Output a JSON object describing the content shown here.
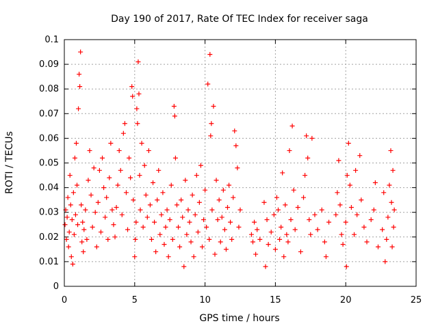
{
  "chart_data": {
    "type": "scatter",
    "title": "Day 190 of 2017, Rate Of TEC Index for receiver saga",
    "xlabel": "GPS time / hours",
    "ylabel": "ROTI / TECUs",
    "xlim": [
      0,
      25
    ],
    "ylim": [
      0,
      0.1
    ],
    "xticks": [
      "0",
      "5",
      "10",
      "15",
      "20",
      "25"
    ],
    "xtick_values": [
      0,
      5,
      10,
      15,
      20,
      25
    ],
    "yticks": [
      "0",
      "0.01",
      "0.02",
      "0.03",
      "0.04",
      "0.05",
      "0.06",
      "0.07",
      "0.08",
      "0.09",
      "0.1"
    ],
    "ytick_values": [
      0,
      0.01,
      0.02,
      0.03,
      0.04,
      0.05,
      0.06,
      0.07,
      0.08,
      0.09,
      0.1
    ],
    "grid": true,
    "marker": "+",
    "color": "#ff0000",
    "series": [
      {
        "points": [
          [
            0.05,
            0.025
          ],
          [
            0.1,
            0.031
          ],
          [
            0.15,
            0.019
          ],
          [
            0.2,
            0.028
          ],
          [
            0.25,
            0.036
          ],
          [
            0.3,
            0.016
          ],
          [
            0.35,
            0.022
          ],
          [
            0.4,
            0.045
          ],
          [
            0.45,
            0.033
          ],
          [
            0.5,
            0.012
          ],
          [
            0.55,
            0.027
          ],
          [
            0.6,
            0.009
          ],
          [
            0.65,
            0.038
          ],
          [
            0.7,
            0.021
          ],
          [
            0.75,
            0.052
          ],
          [
            0.8,
            0.029
          ],
          [
            0.85,
            0.058
          ],
          [
            0.9,
            0.041
          ],
          [
            0.95,
            0.025
          ],
          [
            1.0,
            0.072
          ],
          [
            1.05,
            0.086
          ],
          [
            1.1,
            0.081
          ],
          [
            1.15,
            0.095
          ],
          [
            1.2,
            0.033
          ],
          [
            1.25,
            0.018
          ],
          [
            1.3,
            0.026
          ],
          [
            1.35,
            0.014
          ],
          [
            1.4,
            0.023
          ],
          [
            1.5,
            0.031
          ],
          [
            1.6,
            0.019
          ],
          [
            1.7,
            0.043
          ],
          [
            1.8,
            0.055
          ],
          [
            1.9,
            0.037
          ],
          [
            2.0,
            0.024
          ],
          [
            2.1,
            0.048
          ],
          [
            2.2,
            0.03
          ],
          [
            2.3,
            0.016
          ],
          [
            2.4,
            0.034
          ],
          [
            2.5,
            0.047
          ],
          [
            2.6,
            0.022
          ],
          [
            2.7,
            0.052
          ],
          [
            2.8,
            0.04
          ],
          [
            2.9,
            0.028
          ],
          [
            3.0,
            0.036
          ],
          [
            3.1,
            0.019
          ],
          [
            3.2,
            0.044
          ],
          [
            3.3,
            0.058
          ],
          [
            3.4,
            0.031
          ],
          [
            3.5,
            0.025
          ],
          [
            3.6,
            0.02
          ],
          [
            3.7,
            0.032
          ],
          [
            3.8,
            0.041
          ],
          [
            3.9,
            0.055
          ],
          [
            4.0,
            0.047
          ],
          [
            4.1,
            0.029
          ],
          [
            4.2,
            0.062
          ],
          [
            4.3,
            0.066
          ],
          [
            4.4,
            0.038
          ],
          [
            4.5,
            0.023
          ],
          [
            4.6,
            0.052
          ],
          [
            4.7,
            0.044
          ],
          [
            4.8,
            0.081
          ],
          [
            4.85,
            0.077
          ],
          [
            4.9,
            0.035
          ],
          [
            5.0,
            0.012
          ],
          [
            5.05,
            0.019
          ],
          [
            5.1,
            0.026
          ],
          [
            5.15,
            0.072
          ],
          [
            5.2,
            0.066
          ],
          [
            5.25,
            0.091
          ],
          [
            5.3,
            0.078
          ],
          [
            5.35,
            0.045
          ],
          [
            5.4,
            0.031
          ],
          [
            5.5,
            0.058
          ],
          [
            5.6,
            0.024
          ],
          [
            5.7,
            0.049
          ],
          [
            5.8,
            0.037
          ],
          [
            5.9,
            0.028
          ],
          [
            6.0,
            0.055
          ],
          [
            6.1,
            0.033
          ],
          [
            6.2,
            0.019
          ],
          [
            6.3,
            0.042
          ],
          [
            6.4,
            0.026
          ],
          [
            6.5,
            0.014
          ],
          [
            6.6,
            0.035
          ],
          [
            6.7,
            0.047
          ],
          [
            6.8,
            0.021
          ],
          [
            6.9,
            0.029
          ],
          [
            7.0,
            0.038
          ],
          [
            7.1,
            0.017
          ],
          [
            7.2,
            0.024
          ],
          [
            7.3,
            0.031
          ],
          [
            7.4,
            0.012
          ],
          [
            7.5,
            0.027
          ],
          [
            7.6,
            0.041
          ],
          [
            7.7,
            0.019
          ],
          [
            7.8,
            0.073
          ],
          [
            7.85,
            0.069
          ],
          [
            7.9,
            0.052
          ],
          [
            8.0,
            0.033
          ],
          [
            8.1,
            0.024
          ],
          [
            8.2,
            0.016
          ],
          [
            8.3,
            0.035
          ],
          [
            8.4,
            0.028
          ],
          [
            8.5,
            0.008
          ],
          [
            8.6,
            0.043
          ],
          [
            8.7,
            0.021
          ],
          [
            8.8,
            0.031
          ],
          [
            8.9,
            0.026
          ],
          [
            9.0,
            0.018
          ],
          [
            9.1,
            0.037
          ],
          [
            9.2,
            0.012
          ],
          [
            9.3,
            0.029
          ],
          [
            9.4,
            0.045
          ],
          [
            9.5,
            0.022
          ],
          [
            9.6,
            0.034
          ],
          [
            9.7,
            0.049
          ],
          [
            9.8,
            0.016
          ],
          [
            9.9,
            0.027
          ],
          [
            10.0,
            0.039
          ],
          [
            10.1,
            0.024
          ],
          [
            10.2,
            0.082
          ],
          [
            10.3,
            0.019
          ],
          [
            10.35,
            0.094
          ],
          [
            10.4,
            0.061
          ],
          [
            10.45,
            0.066
          ],
          [
            10.5,
            0.031
          ],
          [
            10.6,
            0.073
          ],
          [
            10.7,
            0.013
          ],
          [
            10.8,
            0.043
          ],
          [
            10.9,
            0.027
          ],
          [
            11.0,
            0.035
          ],
          [
            11.1,
            0.018
          ],
          [
            11.2,
            0.028
          ],
          [
            11.3,
            0.039
          ],
          [
            11.4,
            0.023
          ],
          [
            11.5,
            0.015
          ],
          [
            11.6,
            0.032
          ],
          [
            11.7,
            0.041
          ],
          [
            11.8,
            0.026
          ],
          [
            11.9,
            0.019
          ],
          [
            12.0,
            0.036
          ],
          [
            12.1,
            0.063
          ],
          [
            12.2,
            0.057
          ],
          [
            12.3,
            0.048
          ],
          [
            12.4,
            0.024
          ],
          [
            12.5,
            0.031
          ],
          [
            13.3,
            0.021
          ],
          [
            13.4,
            0.018
          ],
          [
            13.5,
            0.026
          ],
          [
            13.6,
            0.013
          ],
          [
            13.7,
            0.023
          ],
          [
            13.9,
            0.019
          ],
          [
            14.2,
            0.034
          ],
          [
            14.3,
            0.008
          ],
          [
            14.4,
            0.027
          ],
          [
            14.5,
            0.017
          ],
          [
            14.7,
            0.022
          ],
          [
            14.9,
            0.029
          ],
          [
            15.0,
            0.015
          ],
          [
            15.1,
            0.036
          ],
          [
            15.2,
            0.031
          ],
          [
            15.3,
            0.019
          ],
          [
            15.4,
            0.024
          ],
          [
            15.5,
            0.046
          ],
          [
            15.6,
            0.012
          ],
          [
            15.7,
            0.033
          ],
          [
            15.8,
            0.021
          ],
          [
            15.9,
            0.018
          ],
          [
            16.0,
            0.055
          ],
          [
            16.1,
            0.027
          ],
          [
            16.2,
            0.065
          ],
          [
            16.3,
            0.039
          ],
          [
            16.4,
            0.023
          ],
          [
            16.6,
            0.032
          ],
          [
            16.8,
            0.014
          ],
          [
            17.0,
            0.036
          ],
          [
            17.1,
            0.045
          ],
          [
            17.2,
            0.061
          ],
          [
            17.3,
            0.052
          ],
          [
            17.4,
            0.027
          ],
          [
            17.5,
            0.021
          ],
          [
            17.6,
            0.06
          ],
          [
            17.8,
            0.029
          ],
          [
            18.0,
            0.023
          ],
          [
            18.3,
            0.031
          ],
          [
            18.5,
            0.018
          ],
          [
            18.6,
            0.012
          ],
          [
            18.8,
            0.026
          ],
          [
            19.3,
            0.029
          ],
          [
            19.4,
            0.038
          ],
          [
            19.5,
            0.051
          ],
          [
            19.6,
            0.033
          ],
          [
            19.7,
            0.021
          ],
          [
            19.8,
            0.017
          ],
          [
            20.0,
            0.026
          ],
          [
            20.05,
            0.008
          ],
          [
            20.1,
            0.045
          ],
          [
            20.2,
            0.058
          ],
          [
            20.3,
            0.041
          ],
          [
            20.4,
            0.032
          ],
          [
            20.6,
            0.021
          ],
          [
            20.7,
            0.047
          ],
          [
            20.8,
            0.029
          ],
          [
            21.0,
            0.053
          ],
          [
            21.1,
            0.035
          ],
          [
            21.3,
            0.024
          ],
          [
            21.5,
            0.018
          ],
          [
            21.8,
            0.027
          ],
          [
            22.0,
            0.031
          ],
          [
            22.1,
            0.042
          ],
          [
            22.3,
            0.016
          ],
          [
            22.6,
            0.023
          ],
          [
            22.7,
            0.038
          ],
          [
            22.8,
            0.01
          ],
          [
            22.9,
            0.019
          ],
          [
            23.0,
            0.028
          ],
          [
            23.1,
            0.041
          ],
          [
            23.2,
            0.055
          ],
          [
            23.25,
            0.034
          ],
          [
            23.3,
            0.016
          ],
          [
            23.35,
            0.047
          ],
          [
            23.4,
            0.024
          ],
          [
            23.45,
            0.031
          ]
        ]
      }
    ]
  }
}
